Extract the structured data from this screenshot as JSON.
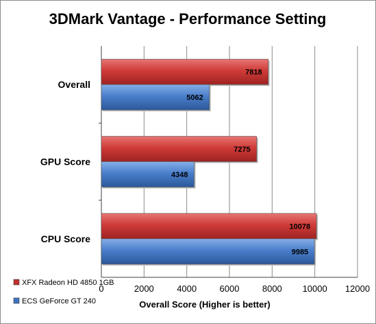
{
  "chart_data": {
    "type": "bar",
    "orientation": "horizontal",
    "title": "3DMark Vantage - Performance Setting",
    "xlabel": "Overall Score (Higher is better)",
    "ylabel": "",
    "categories": [
      "Overall",
      "GPU Score",
      "CPU Score"
    ],
    "series": [
      {
        "name": "XFX Radeon HD 4850 1GB",
        "values": [
          7818,
          7275,
          10078
        ],
        "color": "#c0302e"
      },
      {
        "name": "ECS GeForce GT 240",
        "values": [
          5062,
          4348,
          9985
        ],
        "color": "#3f73c0"
      }
    ],
    "xlim": [
      0,
      12000
    ],
    "xticks": [
      0,
      2000,
      4000,
      6000,
      8000,
      10000,
      12000
    ],
    "grid": true,
    "legend": "bottom-left",
    "data_labels": true
  }
}
